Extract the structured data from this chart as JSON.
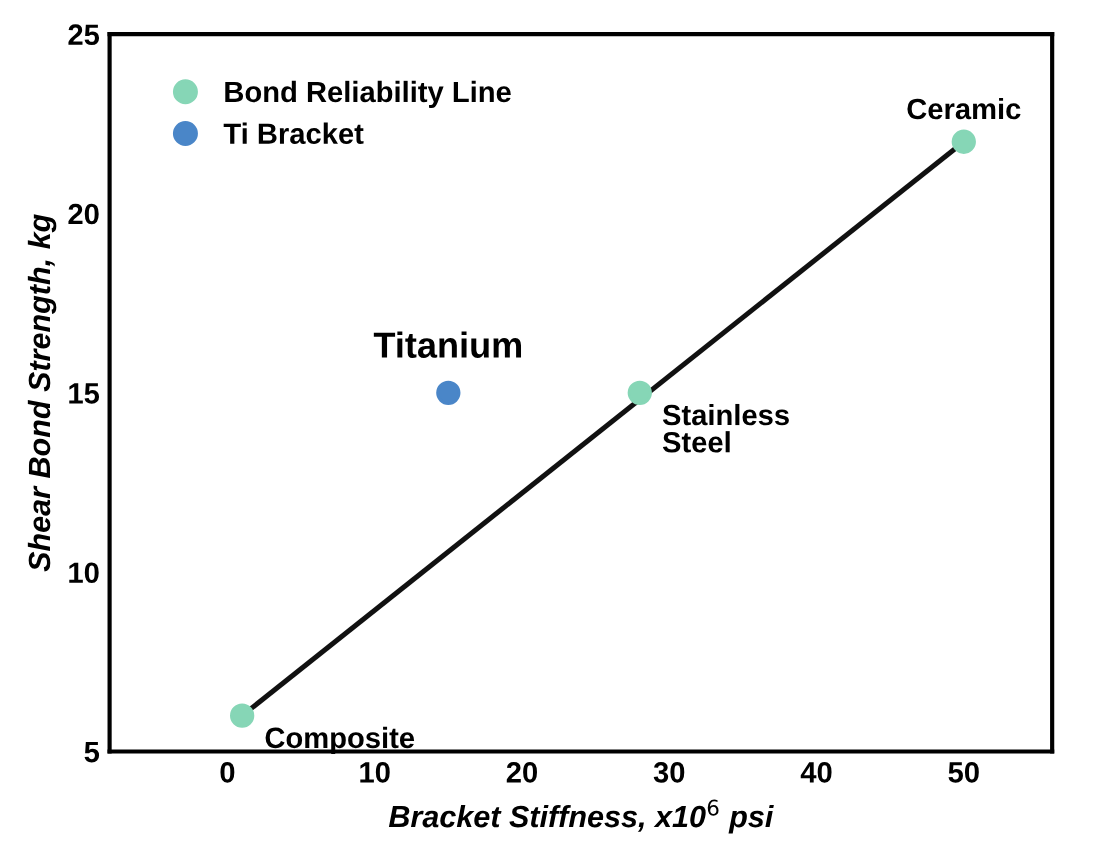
{
  "chart_data": {
    "type": "scatter",
    "xlabel": "Bracket Stiffness, x10$^{6}$ psi",
    "ylabel": "Shear Bond Strength, kg",
    "xlim": [
      -8,
      56
    ],
    "xticks": [
      0,
      10,
      20,
      30,
      40,
      50
    ],
    "ylim": [
      5,
      25
    ],
    "yticks": [
      5,
      10,
      15,
      20,
      25
    ],
    "grid": false,
    "legend": "top left",
    "series": [
      {
        "type": "line",
        "color": "#111111",
        "x": [
          1,
          50
        ],
        "values": [
          6,
          22
        ],
        "line_style": "solid"
      },
      {
        "name": "Bond Reliability Line",
        "color": "#86d6b6",
        "x": [
          1,
          28,
          50
        ],
        "values": [
          6,
          15,
          22
        ],
        "marker": "circle"
      },
      {
        "name": "Ti Bracket",
        "color": "#4a86c8",
        "x": [
          15
        ],
        "values": [
          15
        ],
        "marker": "circle"
      }
    ],
    "annotations": [
      {
        "text": "Titanium",
        "x": 15,
        "y": 15
      },
      {
        "text": "Stainless\nSteel",
        "x": 28,
        "y": 15
      },
      {
        "text": "Ceramic",
        "x": 50,
        "y": 22
      },
      {
        "text": "Composite",
        "x": 1,
        "y": 6
      }
    ]
  }
}
